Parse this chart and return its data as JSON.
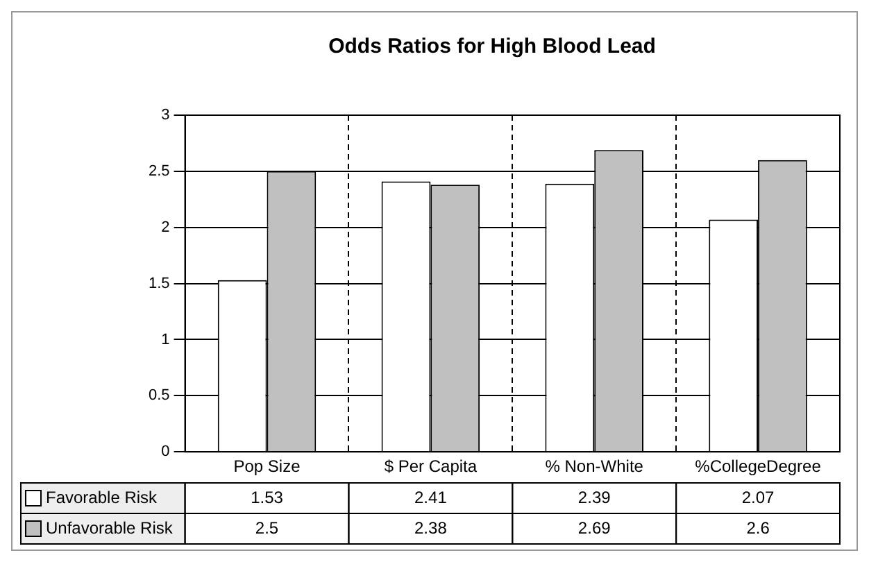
{
  "chart_data": {
    "type": "bar",
    "title": "Odds Ratios for High Blood Lead",
    "categories": [
      "Pop Size",
      "$ Per Capita",
      "% Non-White",
      "%CollegeDegree"
    ],
    "series": [
      {
        "name": "Favorable Risk",
        "color": "#ffffff",
        "values": [
          1.53,
          2.41,
          2.39,
          2.07
        ]
      },
      {
        "name": "Unfavorable Risk",
        "color": "#c0c0c0",
        "values": [
          2.5,
          2.38,
          2.69,
          2.6
        ]
      }
    ],
    "ylim": [
      0,
      3
    ],
    "yticks": [
      0,
      0.5,
      1,
      1.5,
      2,
      2.5,
      3
    ],
    "grid": true,
    "legend": "bottom",
    "data_labels": true
  }
}
